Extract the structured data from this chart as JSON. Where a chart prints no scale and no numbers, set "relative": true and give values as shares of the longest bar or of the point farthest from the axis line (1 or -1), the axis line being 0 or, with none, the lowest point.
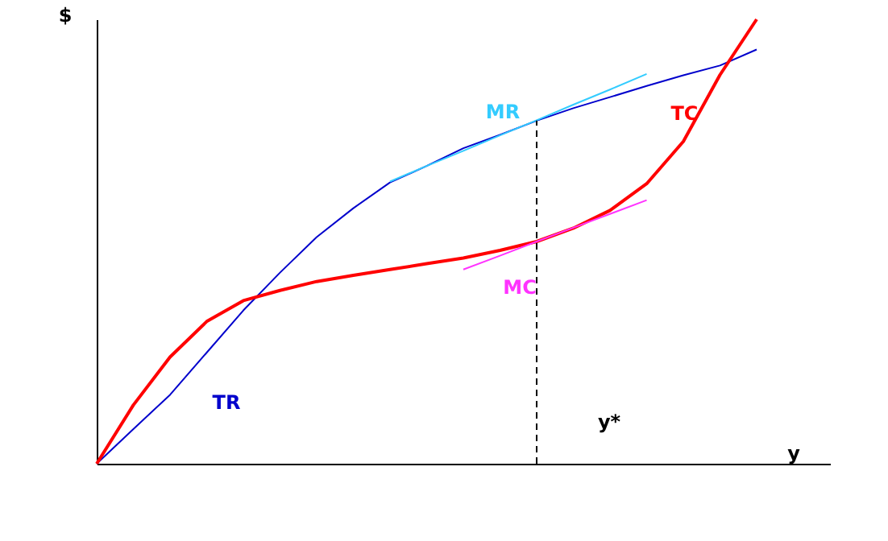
{
  "chart_data": {
    "type": "line",
    "relative": true,
    "xlabel": "y",
    "ylabel": "$",
    "grid": false,
    "marker": "none",
    "categories": [
      null,
      null,
      null,
      null,
      null,
      null,
      null,
      null,
      null,
      null,
      null,
      null,
      null,
      null,
      null,
      null,
      null,
      null,
      null,
      null,
      null
    ],
    "series": [
      {
        "name": "TR",
        "color": "#0000cc",
        "values": [
          0,
          0.078,
          0.155,
          0.25,
          0.345,
          0.43,
          0.51,
          0.575,
          0.633,
          0.67,
          0.71,
          0.74,
          0.772,
          0.8,
          0.825,
          0.85,
          0.874,
          0.896,
          0.932,
          null,
          null
        ]
      },
      {
        "name": "TC",
        "color": "#ff0000",
        "values": [
          0,
          0.132,
          0.24,
          0.32,
          0.367,
          0.39,
          0.41,
          0.424,
          0.437,
          0.45,
          0.463,
          0.48,
          0.5,
          0.53,
          0.57,
          0.63,
          0.725,
          0.875,
          1,
          null,
          null
        ]
      },
      {
        "name": "MR",
        "color": "#33ccff",
        "values": [
          null,
          null,
          null,
          null,
          null,
          null,
          null,
          null,
          0.635,
          0.67,
          0.704,
          0.739,
          0.773,
          0.808,
          0.842,
          0.877,
          null,
          null,
          null,
          null,
          null
        ]
      },
      {
        "name": "MC",
        "color": "#ff33ff",
        "values": [
          null,
          null,
          null,
          null,
          null,
          null,
          null,
          null,
          null,
          null,
          0.437,
          0.468,
          0.5,
          0.531,
          0.562,
          0.593,
          null,
          null,
          null,
          null,
          null
        ]
      }
    ],
    "annotations": [
      "y*"
    ]
  }
}
